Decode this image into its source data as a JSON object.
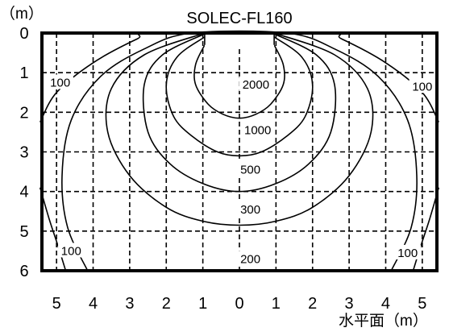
{
  "chart_data": {
    "type": "contour",
    "title": "SOLEC-FL160",
    "y_unit_label": "（m）",
    "x_unit_label": "水平面（m）",
    "x_tick_labels": [
      "5",
      "4",
      "3",
      "2",
      "1",
      "0",
      "1",
      "2",
      "3",
      "4",
      "5"
    ],
    "x_tick_values": [
      -5,
      -4,
      -3,
      -2,
      -1,
      0,
      1,
      2,
      3,
      4,
      5
    ],
    "y_tick_labels": [
      "0",
      "1",
      "2",
      "3",
      "4",
      "5",
      "6"
    ],
    "y_tick_values": [
      0,
      1,
      2,
      3,
      4,
      5,
      6
    ],
    "xlim": [
      -5.4,
      5.4
    ],
    "ylim": [
      0,
      6
    ],
    "grid": true,
    "grid_x": [
      -5,
      -4,
      -3,
      -2,
      -1,
      0,
      1,
      2,
      3,
      4,
      5
    ],
    "grid_y": [
      1,
      2,
      3,
      4,
      5
    ],
    "fixture_x_range": [
      -0.95,
      0.95
    ],
    "contours": [
      {
        "level": "2000",
        "points": [
          [
            -0.95,
            0.3
          ],
          [
            -1.2,
            0.8
          ],
          [
            -1.2,
            1.3
          ],
          [
            -0.85,
            1.8
          ],
          [
            -0.45,
            2.05
          ],
          [
            0,
            2.15
          ],
          [
            0.45,
            2.05
          ],
          [
            0.85,
            1.8
          ],
          [
            1.2,
            1.3
          ],
          [
            1.2,
            0.8
          ],
          [
            0.95,
            0.3
          ]
        ]
      },
      {
        "level": "1000",
        "points": [
          [
            -0.95,
            0.1
          ],
          [
            -1.7,
            0.6
          ],
          [
            -2.0,
            1.3
          ],
          [
            -1.8,
            2.1
          ],
          [
            -1.3,
            2.6
          ],
          [
            -0.6,
            3.0
          ],
          [
            0,
            3.1
          ],
          [
            0.6,
            3.0
          ],
          [
            1.3,
            2.6
          ],
          [
            1.8,
            2.1
          ],
          [
            2.0,
            1.3
          ],
          [
            1.7,
            0.6
          ],
          [
            0.95,
            0.1
          ]
        ]
      },
      {
        "level": "500",
        "points": [
          [
            -0.95,
            0.02
          ],
          [
            -2.1,
            0.55
          ],
          [
            -2.6,
            1.3
          ],
          [
            -2.5,
            2.5
          ],
          [
            -1.9,
            3.3
          ],
          [
            -1.0,
            3.8
          ],
          [
            0,
            4.0
          ],
          [
            1.0,
            3.8
          ],
          [
            1.9,
            3.3
          ],
          [
            2.5,
            2.5
          ],
          [
            2.6,
            1.3
          ],
          [
            2.1,
            0.55
          ],
          [
            0.95,
            0.02
          ]
        ]
      },
      {
        "level": "300",
        "points": [
          [
            -0.95,
            0.0
          ],
          [
            -2.6,
            0.55
          ],
          [
            -3.5,
            1.4
          ],
          [
            -3.6,
            2.5
          ],
          [
            -3.0,
            3.6
          ],
          [
            -2.0,
            4.4
          ],
          [
            -1.0,
            4.75
          ],
          [
            0,
            4.85
          ],
          [
            1.0,
            4.75
          ],
          [
            2.0,
            4.4
          ],
          [
            3.0,
            3.6
          ],
          [
            3.6,
            2.5
          ],
          [
            3.5,
            1.4
          ],
          [
            2.6,
            0.55
          ],
          [
            0.95,
            0.0
          ]
        ]
      },
      {
        "level": "200",
        "points": [
          [
            -4.15,
            6.0
          ],
          [
            -4.7,
            4.9
          ],
          [
            -4.85,
            3.6
          ],
          [
            -4.6,
            2.2
          ],
          [
            -3.8,
            1.1
          ],
          [
            -2.6,
            0.4
          ],
          [
            -1.3,
            0.0
          ],
          [
            1.3,
            0.0
          ],
          [
            2.6,
            0.4
          ],
          [
            3.8,
            1.1
          ],
          [
            4.6,
            2.2
          ],
          [
            4.85,
            3.6
          ],
          [
            4.7,
            4.9
          ],
          [
            4.15,
            6.0
          ]
        ]
      },
      {
        "level": "100",
        "points": [
          [
            -5.45,
            2.25
          ],
          [
            -5.0,
            1.5
          ],
          [
            -4.0,
            0.75
          ],
          [
            -2.8,
            0.15
          ],
          [
            -2.3,
            0.0
          ],
          [
            2.3,
            0.0
          ],
          [
            2.8,
            0.15
          ],
          [
            4.0,
            0.75
          ],
          [
            5.0,
            1.5
          ],
          [
            5.45,
            2.25
          ]
        ]
      },
      {
        "level": "100",
        "points": [
          [
            -5.45,
            3.9
          ],
          [
            -5.2,
            4.7
          ],
          [
            -4.95,
            5.4
          ],
          [
            -4.75,
            6.0
          ]
        ]
      },
      {
        "level": "100",
        "points": [
          [
            5.45,
            3.9
          ],
          [
            5.2,
            4.7
          ],
          [
            4.95,
            5.4
          ],
          [
            4.75,
            6.0
          ]
        ]
      }
    ],
    "contour_labels": [
      {
        "text": "100",
        "x": -4.9,
        "y": 1.25
      },
      {
        "text": "100",
        "x": 5.0,
        "y": 1.35
      },
      {
        "text": "2000",
        "x": 0.45,
        "y": 1.3
      },
      {
        "text": "1000",
        "x": 0.5,
        "y": 2.45
      },
      {
        "text": "500",
        "x": 0.3,
        "y": 3.45
      },
      {
        "text": "300",
        "x": 0.3,
        "y": 4.45
      },
      {
        "text": "200",
        "x": 0.3,
        "y": 5.7
      },
      {
        "text": "100",
        "x": -4.6,
        "y": 5.5
      },
      {
        "text": "100",
        "x": 4.6,
        "y": 5.55
      }
    ]
  }
}
